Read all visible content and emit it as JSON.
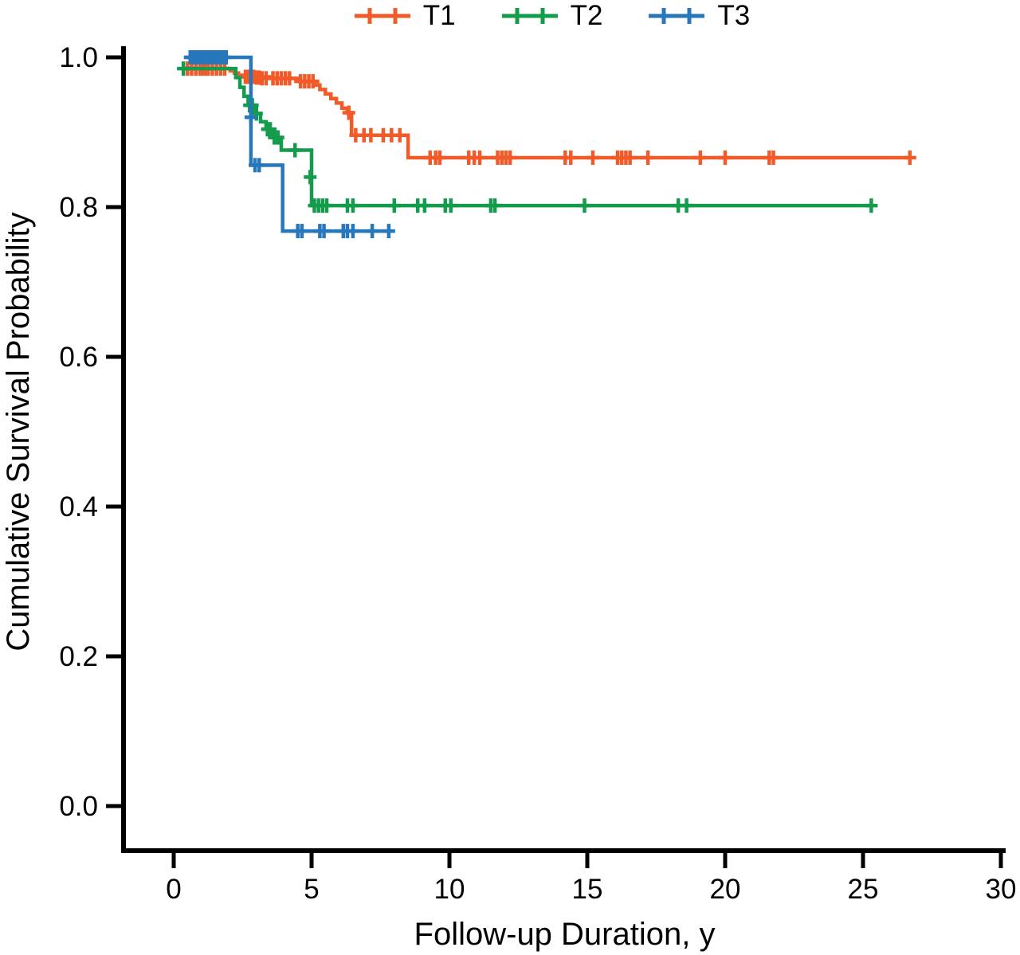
{
  "figure": {
    "background": "#ffffff",
    "axis_color": "#000000"
  },
  "chart_data": {
    "type": "line",
    "subtype": "kaplan_meier_step",
    "title": "",
    "xlabel": "Follow-up Duration, y",
    "ylabel": "Cumulative Survival Probability",
    "xlim": [
      0,
      30
    ],
    "ylim": [
      0.0,
      1.0
    ],
    "xticks": [
      0,
      5,
      10,
      15,
      20,
      25,
      30
    ],
    "xtick_labels": [
      "0",
      "5",
      "10",
      "15",
      "20",
      "25",
      "30"
    ],
    "yticks": [
      0.0,
      0.2,
      0.4,
      0.6,
      0.8,
      1.0
    ],
    "ytick_labels": [
      "0.0",
      "0.2",
      "0.4",
      "0.6",
      "0.8",
      "1.0"
    ],
    "grid": false,
    "legend_position": "top-center",
    "marker": "plus",
    "series": [
      {
        "name": "T1",
        "color": "#F15A29",
        "steps": [
          [
            0.3,
            0.985
          ],
          [
            1.9,
            0.985
          ],
          [
            2.05,
            0.982
          ],
          [
            2.2,
            0.979
          ],
          [
            2.35,
            0.976
          ],
          [
            2.55,
            0.974
          ],
          [
            3.5,
            0.972
          ],
          [
            4.5,
            0.968
          ],
          [
            5.1,
            0.963
          ],
          [
            5.3,
            0.957
          ],
          [
            5.5,
            0.951
          ],
          [
            5.7,
            0.945
          ],
          [
            5.9,
            0.939
          ],
          [
            6.1,
            0.932
          ],
          [
            6.3,
            0.926
          ],
          [
            6.45,
            0.896
          ],
          [
            8.35,
            0.896
          ],
          [
            8.5,
            0.866
          ],
          [
            26.7,
            0.866
          ]
        ],
        "censor_marks": [
          [
            0.5,
            0.985
          ],
          [
            0.65,
            0.985
          ],
          [
            0.8,
            0.985
          ],
          [
            0.95,
            0.985
          ],
          [
            1.05,
            0.985
          ],
          [
            1.15,
            0.985
          ],
          [
            1.25,
            0.985
          ],
          [
            1.4,
            0.985
          ],
          [
            1.55,
            0.985
          ],
          [
            1.7,
            0.985
          ],
          [
            1.85,
            0.985
          ],
          [
            2.6,
            0.974
          ],
          [
            2.7,
            0.974
          ],
          [
            2.8,
            0.974
          ],
          [
            2.9,
            0.974
          ],
          [
            3.0,
            0.973
          ],
          [
            3.1,
            0.973
          ],
          [
            3.2,
            0.972
          ],
          [
            3.35,
            0.972
          ],
          [
            3.6,
            0.972
          ],
          [
            3.75,
            0.972
          ],
          [
            3.9,
            0.972
          ],
          [
            4.05,
            0.972
          ],
          [
            4.2,
            0.972
          ],
          [
            4.6,
            0.968
          ],
          [
            4.75,
            0.968
          ],
          [
            4.9,
            0.968
          ],
          [
            5.05,
            0.968
          ],
          [
            6.35,
            0.926
          ],
          [
            6.6,
            0.896
          ],
          [
            6.9,
            0.896
          ],
          [
            7.15,
            0.896
          ],
          [
            7.6,
            0.896
          ],
          [
            7.9,
            0.896
          ],
          [
            8.2,
            0.896
          ],
          [
            9.3,
            0.866
          ],
          [
            9.5,
            0.866
          ],
          [
            9.65,
            0.866
          ],
          [
            10.7,
            0.866
          ],
          [
            10.9,
            0.866
          ],
          [
            11.1,
            0.866
          ],
          [
            11.75,
            0.866
          ],
          [
            11.9,
            0.866
          ],
          [
            12.05,
            0.866
          ],
          [
            12.2,
            0.866
          ],
          [
            14.2,
            0.866
          ],
          [
            14.4,
            0.866
          ],
          [
            15.2,
            0.866
          ],
          [
            16.1,
            0.866
          ],
          [
            16.25,
            0.866
          ],
          [
            16.4,
            0.866
          ],
          [
            16.55,
            0.866
          ],
          [
            17.2,
            0.866
          ],
          [
            19.1,
            0.866
          ],
          [
            20.0,
            0.866
          ],
          [
            21.6,
            0.866
          ],
          [
            21.75,
            0.866
          ],
          [
            26.7,
            0.866
          ]
        ]
      },
      {
        "name": "T2",
        "color": "#149C4D",
        "steps": [
          [
            0.3,
            0.985
          ],
          [
            2.1,
            0.985
          ],
          [
            2.25,
            0.973
          ],
          [
            2.4,
            0.96
          ],
          [
            2.55,
            0.948
          ],
          [
            2.7,
            0.936
          ],
          [
            2.95,
            0.925
          ],
          [
            3.15,
            0.914
          ],
          [
            3.35,
            0.904
          ],
          [
            3.6,
            0.893
          ],
          [
            3.9,
            0.876
          ],
          [
            4.85,
            0.876
          ],
          [
            5.0,
            0.802
          ],
          [
            25.3,
            0.802
          ]
        ],
        "censor_marks": [
          [
            0.35,
            0.985
          ],
          [
            2.75,
            0.936
          ],
          [
            2.85,
            0.936
          ],
          [
            3.0,
            0.925
          ],
          [
            3.4,
            0.904
          ],
          [
            3.5,
            0.904
          ],
          [
            3.65,
            0.893
          ],
          [
            3.78,
            0.893
          ],
          [
            4.4,
            0.876
          ],
          [
            4.95,
            0.84
          ],
          [
            5.1,
            0.802
          ],
          [
            5.25,
            0.802
          ],
          [
            5.4,
            0.802
          ],
          [
            5.55,
            0.802
          ],
          [
            6.3,
            0.802
          ],
          [
            6.5,
            0.802
          ],
          [
            8.0,
            0.802
          ],
          [
            8.85,
            0.802
          ],
          [
            9.1,
            0.802
          ],
          [
            9.85,
            0.802
          ],
          [
            10.05,
            0.802
          ],
          [
            11.5,
            0.802
          ],
          [
            11.65,
            0.802
          ],
          [
            14.9,
            0.802
          ],
          [
            18.3,
            0.802
          ],
          [
            18.6,
            0.802
          ],
          [
            25.3,
            0.802
          ]
        ]
      },
      {
        "name": "T3",
        "color": "#2777BC",
        "steps": [
          [
            0.5,
            1.0
          ],
          [
            2.7,
            1.0
          ],
          [
            2.8,
            0.856
          ],
          [
            3.85,
            0.856
          ],
          [
            3.95,
            0.768
          ],
          [
            7.8,
            0.768
          ]
        ],
        "censor_marks": [
          [
            0.6,
            1.0
          ],
          [
            0.68,
            1.0
          ],
          [
            0.76,
            1.0
          ],
          [
            0.84,
            1.0
          ],
          [
            0.92,
            1.0
          ],
          [
            1.0,
            1.0
          ],
          [
            1.08,
            1.0
          ],
          [
            1.16,
            1.0
          ],
          [
            1.24,
            1.0
          ],
          [
            1.32,
            1.0
          ],
          [
            1.4,
            1.0
          ],
          [
            1.5,
            1.0
          ],
          [
            1.6,
            1.0
          ],
          [
            1.7,
            1.0
          ],
          [
            1.8,
            1.0
          ],
          [
            1.9,
            1.0
          ],
          [
            2.8,
            0.92
          ],
          [
            2.95,
            0.856
          ],
          [
            3.1,
            0.856
          ],
          [
            4.5,
            0.768
          ],
          [
            4.65,
            0.768
          ],
          [
            5.3,
            0.768
          ],
          [
            5.45,
            0.768
          ],
          [
            6.15,
            0.768
          ],
          [
            6.3,
            0.768
          ],
          [
            6.5,
            0.768
          ],
          [
            7.2,
            0.768
          ],
          [
            7.8,
            0.768
          ]
        ]
      }
    ]
  }
}
